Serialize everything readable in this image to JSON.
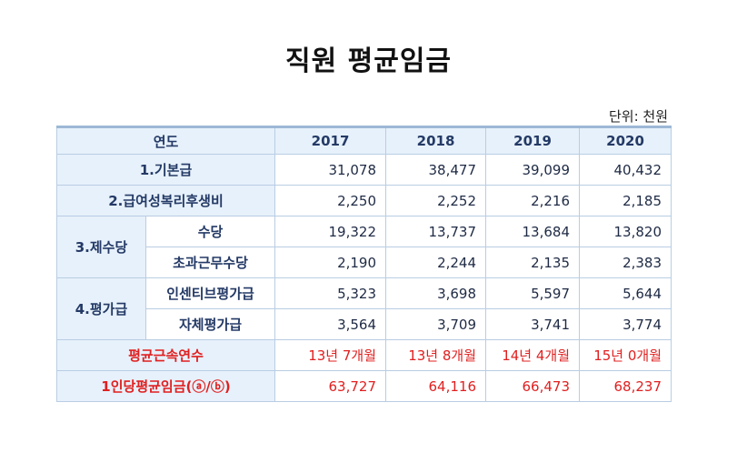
{
  "title": "직원 평균임금",
  "unit": "단위: 천원",
  "table": {
    "header": {
      "label": "연도",
      "years": [
        "2017",
        "2018",
        "2019",
        "2020"
      ]
    },
    "rows": {
      "basic": {
        "label": "1.기본급",
        "values": [
          "31,078",
          "38,477",
          "39,099",
          "40,432"
        ]
      },
      "welfare": {
        "label": "2.급여성복리후생비",
        "values": [
          "2,250",
          "2,252",
          "2,216",
          "2,185"
        ]
      },
      "allowance_group": "3.제수당",
      "allowance": {
        "label": "수당",
        "values": [
          "19,322",
          "13,737",
          "13,684",
          "13,820"
        ]
      },
      "overtime": {
        "label": "초과근무수당",
        "values": [
          "2,190",
          "2,244",
          "2,135",
          "2,383"
        ]
      },
      "evaluation_group": "4.평가급",
      "incentive": {
        "label": "인센티브평가급",
        "values": [
          "5,323",
          "3,698",
          "5,597",
          "5,644"
        ]
      },
      "self_eval": {
        "label": "자체평가급",
        "values": [
          "3,564",
          "3,709",
          "3,741",
          "3,774"
        ]
      },
      "tenure": {
        "label": "평균근속연수",
        "values": [
          "13년 7개월",
          "13년 8개월",
          "14년 4개월",
          "15년 0개월"
        ]
      },
      "per_person": {
        "label": "1인당평균임금(ⓐ/ⓑ)",
        "values": [
          "63,727",
          "64,116",
          "66,473",
          "68,237"
        ]
      }
    }
  },
  "colors": {
    "header_bg": "#e7f1fb",
    "border": "#b9cde3",
    "highlight_text": "#e02020",
    "label_text": "#243a66"
  }
}
